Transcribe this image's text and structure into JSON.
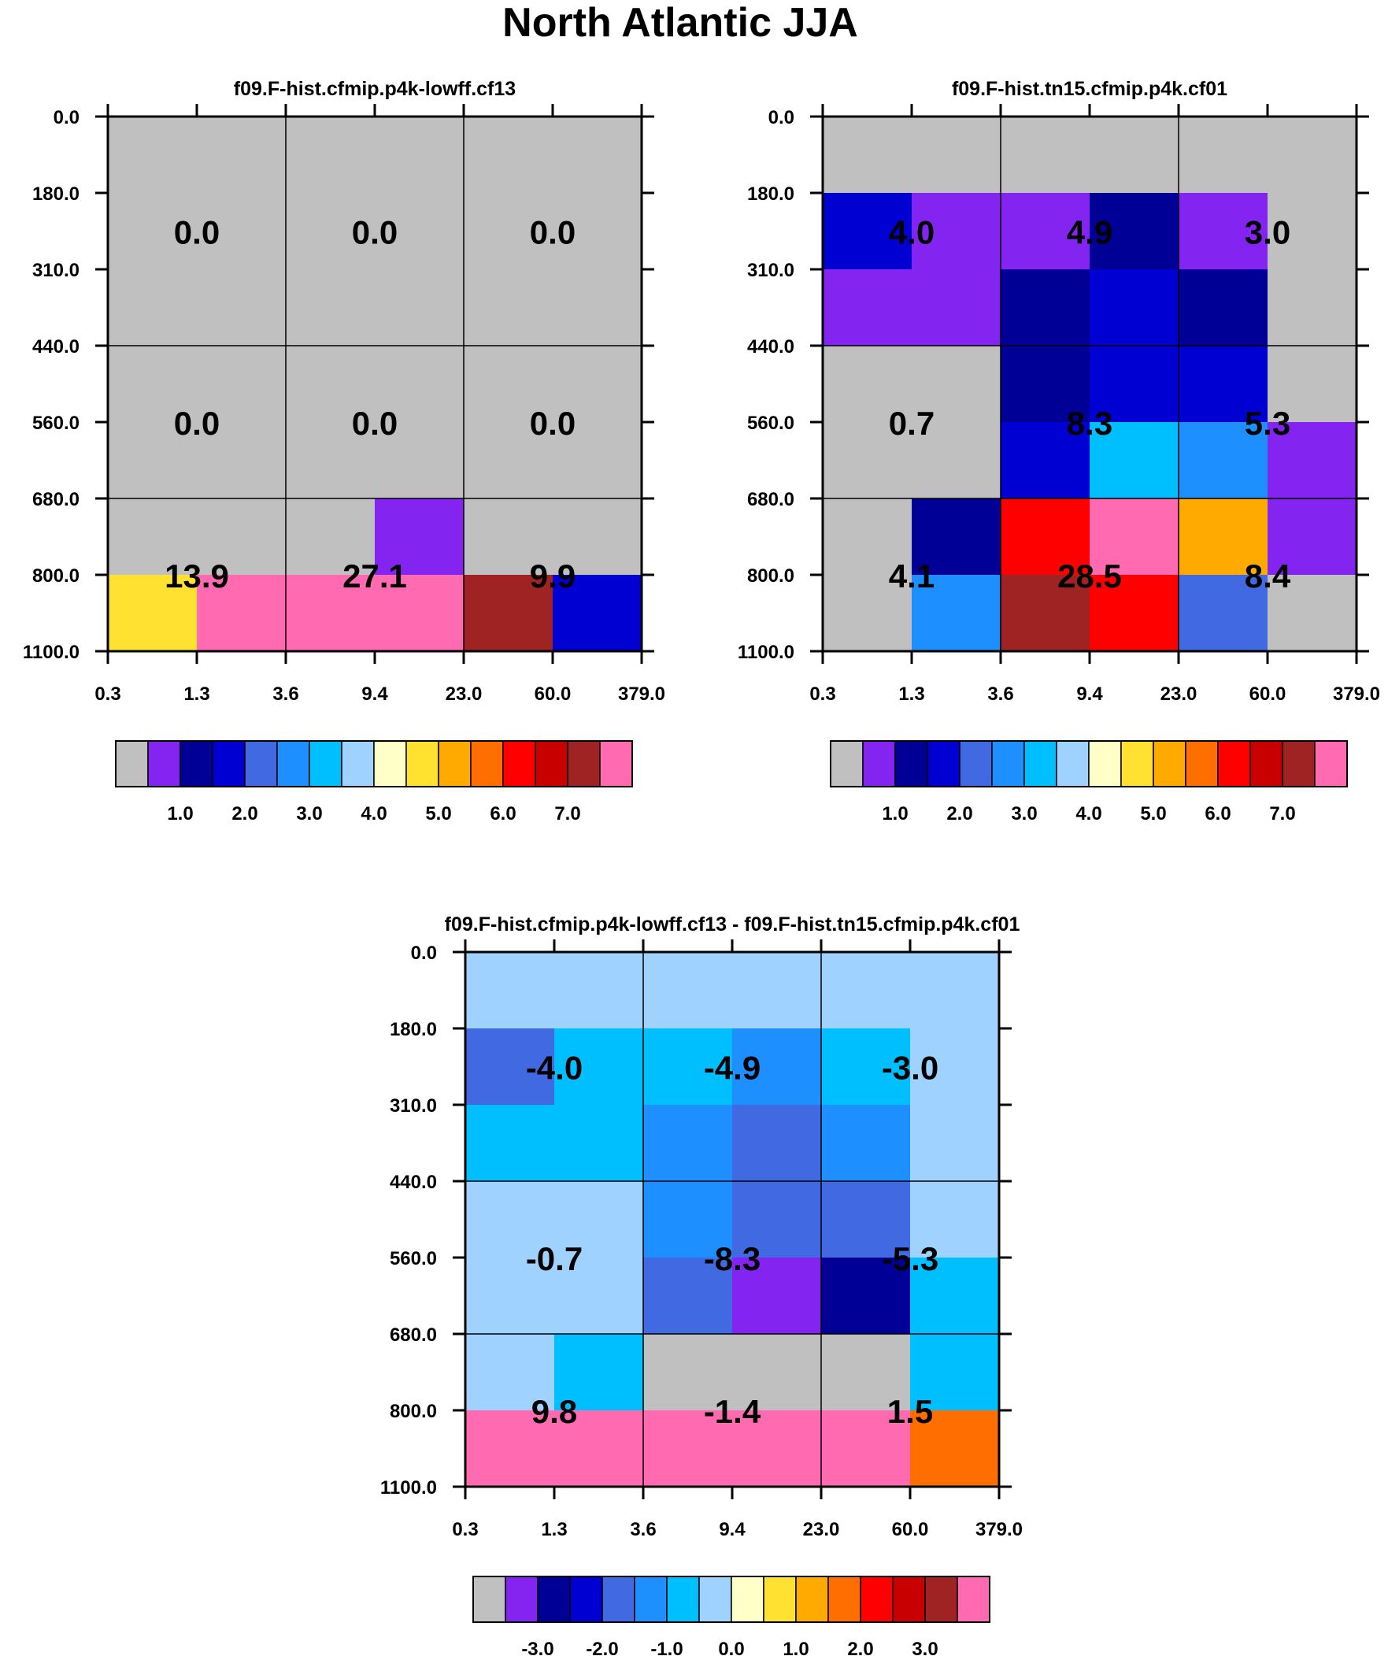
{
  "title": "North Atlantic JJA",
  "palette": [
    "#c0c0c0",
    "#8424f0",
    "#000096",
    "#0000d2",
    "#4169e1",
    "#1e8fff",
    "#00bfff",
    "#a0d2ff",
    "#ffffc8",
    "#ffe132",
    "#ffaa00",
    "#ff6e00",
    "#ff0000",
    "#c80000",
    "#a02323",
    "#ff6ab1"
  ],
  "chart_data": [
    {
      "type": "heatmap",
      "title": "f09.F-hist.cfmip.p4k-lowff.cf13",
      "x_tick_labels": [
        "0.3",
        "1.3",
        "3.6",
        "9.4",
        "23.0",
        "60.0",
        "379.0"
      ],
      "y_tick_labels": [
        "0.0",
        "180.0",
        "310.0",
        "440.0",
        "560.0",
        "680.0",
        "800.0",
        "1100.0"
      ],
      "cells": [
        [
          0,
          0,
          0,
          0,
          0,
          0
        ],
        [
          0,
          0,
          0,
          0,
          0,
          0
        ],
        [
          0,
          0,
          0,
          0,
          0,
          0
        ],
        [
          0,
          0,
          0,
          0,
          0,
          0
        ],
        [
          0,
          0,
          0,
          0,
          0,
          0
        ],
        [
          0,
          0,
          0,
          1,
          0,
          0
        ],
        [
          9,
          15,
          15,
          15,
          14,
          3
        ]
      ],
      "group_labels": [
        [
          "0.0",
          "0.0",
          "0.0"
        ],
        [
          "0.0",
          "0.0",
          "0.0"
        ],
        [
          "13.9",
          "27.1",
          "9.9"
        ]
      ],
      "colorbar_labels": [
        "1.0",
        "2.0",
        "3.0",
        "4.0",
        "5.0",
        "6.0",
        "7.0"
      ]
    },
    {
      "type": "heatmap",
      "title": "f09.F-hist.tn15.cfmip.p4k.cf01",
      "x_tick_labels": [
        "0.3",
        "1.3",
        "3.6",
        "9.4",
        "23.0",
        "60.0",
        "379.0"
      ],
      "y_tick_labels": [
        "0.0",
        "180.0",
        "310.0",
        "440.0",
        "560.0",
        "680.0",
        "800.0",
        "1100.0"
      ],
      "cells": [
        [
          0,
          0,
          0,
          0,
          0,
          0
        ],
        [
          3,
          1,
          1,
          2,
          1,
          0
        ],
        [
          1,
          1,
          2,
          3,
          2,
          0
        ],
        [
          0,
          0,
          2,
          3,
          3,
          0
        ],
        [
          0,
          0,
          3,
          6,
          5,
          1
        ],
        [
          0,
          2,
          12,
          15,
          10,
          1
        ],
        [
          0,
          5,
          14,
          12,
          4,
          0
        ]
      ],
      "group_labels": [
        [
          "4.0",
          "4.9",
          "3.0"
        ],
        [
          "0.7",
          "8.3",
          "5.3"
        ],
        [
          "4.1",
          "28.5",
          "8.4"
        ]
      ],
      "colorbar_labels": [
        "1.0",
        "2.0",
        "3.0",
        "4.0",
        "5.0",
        "6.0",
        "7.0"
      ]
    },
    {
      "type": "heatmap",
      "title": "f09.F-hist.cfmip.p4k-lowff.cf13 - f09.F-hist.tn15.cfmip.p4k.cf01",
      "x_tick_labels": [
        "0.3",
        "1.3",
        "3.6",
        "9.4",
        "23.0",
        "60.0",
        "379.0"
      ],
      "y_tick_labels": [
        "0.0",
        "180.0",
        "310.0",
        "440.0",
        "560.0",
        "680.0",
        "800.0",
        "1100.0"
      ],
      "cells": [
        [
          7,
          7,
          7,
          7,
          7,
          7
        ],
        [
          4,
          6,
          6,
          5,
          6,
          7
        ],
        [
          6,
          6,
          5,
          4,
          5,
          7
        ],
        [
          7,
          7,
          5,
          4,
          4,
          7
        ],
        [
          7,
          7,
          4,
          1,
          2,
          6
        ],
        [
          7,
          6,
          0,
          0,
          0,
          6
        ],
        [
          15,
          15,
          15,
          15,
          15,
          11
        ]
      ],
      "group_labels": [
        [
          "-4.0",
          "-4.9",
          "-3.0"
        ],
        [
          "-0.7",
          "-8.3",
          "-5.3"
        ],
        [
          "9.8",
          "-1.4",
          "1.5"
        ]
      ],
      "colorbar_labels": [
        "-3.0",
        "-2.0",
        "-1.0",
        "0.0",
        "1.0",
        "2.0",
        "3.0"
      ]
    }
  ]
}
